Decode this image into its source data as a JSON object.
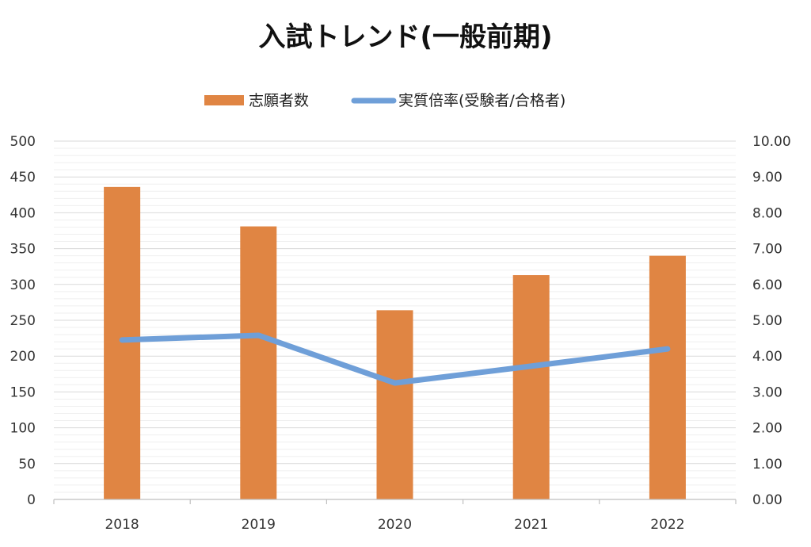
{
  "chart_data": {
    "type": "bar",
    "title": "入試トレンド(一般前期)",
    "categories": [
      "2018",
      "2019",
      "2020",
      "2021",
      "2022"
    ],
    "series": [
      {
        "name": "志願者数",
        "type": "bar",
        "axis": "left",
        "color": "#e08543",
        "values": [
          436,
          381,
          264,
          313,
          340
        ]
      },
      {
        "name": "実質倍率(受験者/合格者)",
        "type": "line",
        "axis": "right",
        "color": "#6f9fd8",
        "values": [
          4.45,
          4.58,
          3.25,
          3.72,
          4.2
        ]
      }
    ],
    "y_left": {
      "range": [
        0,
        500
      ],
      "ticks": [
        "0",
        "50",
        "100",
        "150",
        "200",
        "250",
        "300",
        "350",
        "400",
        "450",
        "500"
      ]
    },
    "y_right": {
      "range": [
        0,
        10
      ],
      "ticks": [
        "0.00",
        "1.00",
        "2.00",
        "3.00",
        "4.00",
        "5.00",
        "6.00",
        "7.00",
        "8.00",
        "9.00",
        "10.00"
      ]
    },
    "grid": true,
    "legend_position": "top"
  }
}
